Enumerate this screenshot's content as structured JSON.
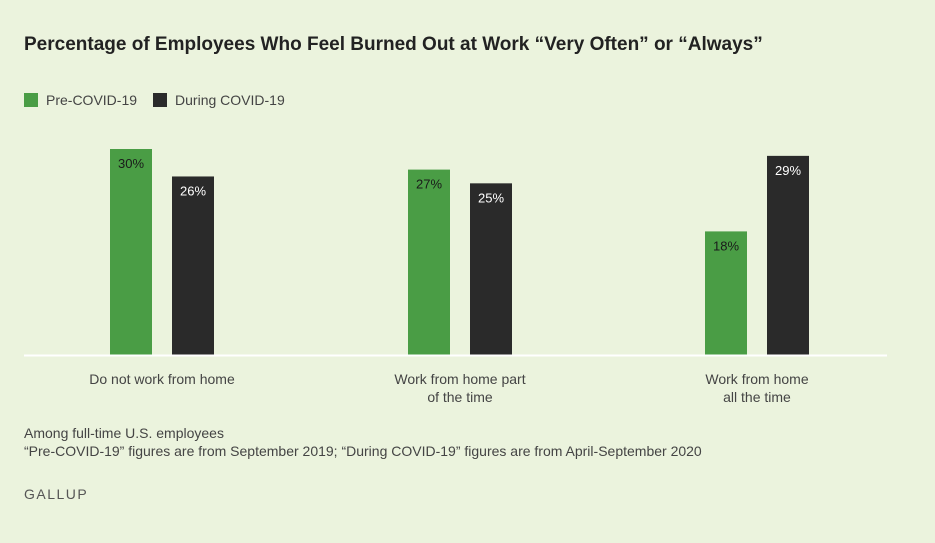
{
  "chart_data": {
    "type": "bar",
    "title": "Percentage of Employees Who Feel Burned Out at Work “Very Often” or “Always”",
    "categories": [
      [
        "Do not work from home"
      ],
      [
        "Work from home part",
        "of the time"
      ],
      [
        "Work from home",
        "all the time"
      ]
    ],
    "series": [
      {
        "name": "Pre-COVID-19",
        "values": [
          30,
          27,
          18
        ],
        "labels": [
          "30%",
          "27%",
          "18%"
        ]
      },
      {
        "name": "During COVID-19",
        "values": [
          26,
          25,
          29
        ],
        "labels": [
          "26%",
          "25%",
          "29%"
        ]
      }
    ],
    "ylim": [
      0,
      30
    ],
    "grid": false,
    "legend": "top-left"
  },
  "colors": {
    "pre": "#4a9d45",
    "during": "#2a2a2a",
    "baseline": "#ffffff",
    "label_on_green": "#1a1a1a",
    "label_on_dark": "#ffffff"
  },
  "notes": {
    "line1": "Among full-time U.S. employees",
    "line2": "“Pre-COVID-19” figures are from September 2019; “During COVID-19” figures are from April-September 2020"
  },
  "brand": "GALLUP"
}
